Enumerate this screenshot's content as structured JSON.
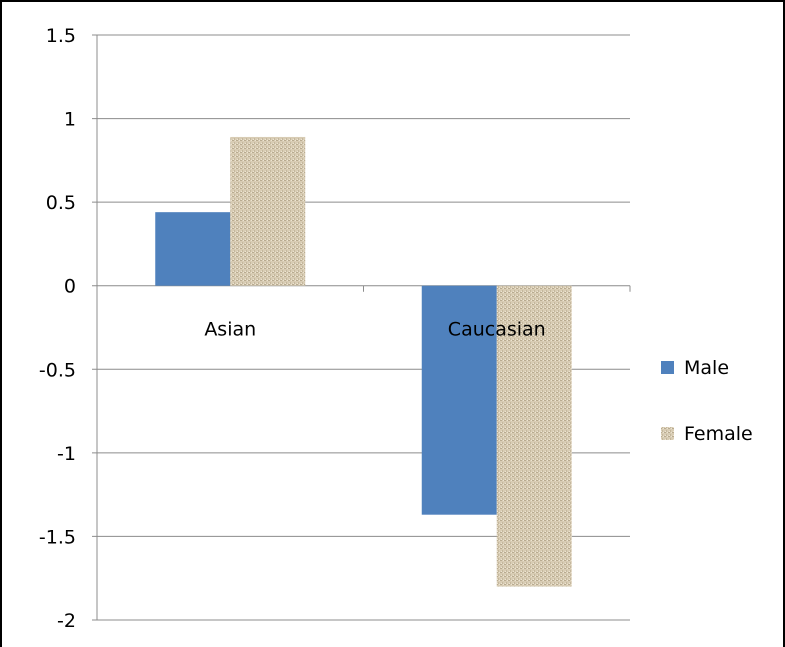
{
  "chart_data": {
    "type": "bar",
    "categories": [
      "Asian",
      "Caucasian"
    ],
    "series": [
      {
        "name": "Male",
        "values": [
          0.44,
          -1.37
        ],
        "color": "#4f81bd"
      },
      {
        "name": "Female",
        "values": [
          0.89,
          -1.8
        ],
        "color": "#d8ccb4"
      }
    ],
    "yticks": [
      "1.5",
      "1",
      "0.5",
      "0",
      "-0.5",
      "-1",
      "-1.5",
      "-2"
    ],
    "ylim": [
      -2,
      1.5
    ],
    "grid": true,
    "legend": "right",
    "title": "",
    "xlabel": "",
    "ylabel": ""
  }
}
